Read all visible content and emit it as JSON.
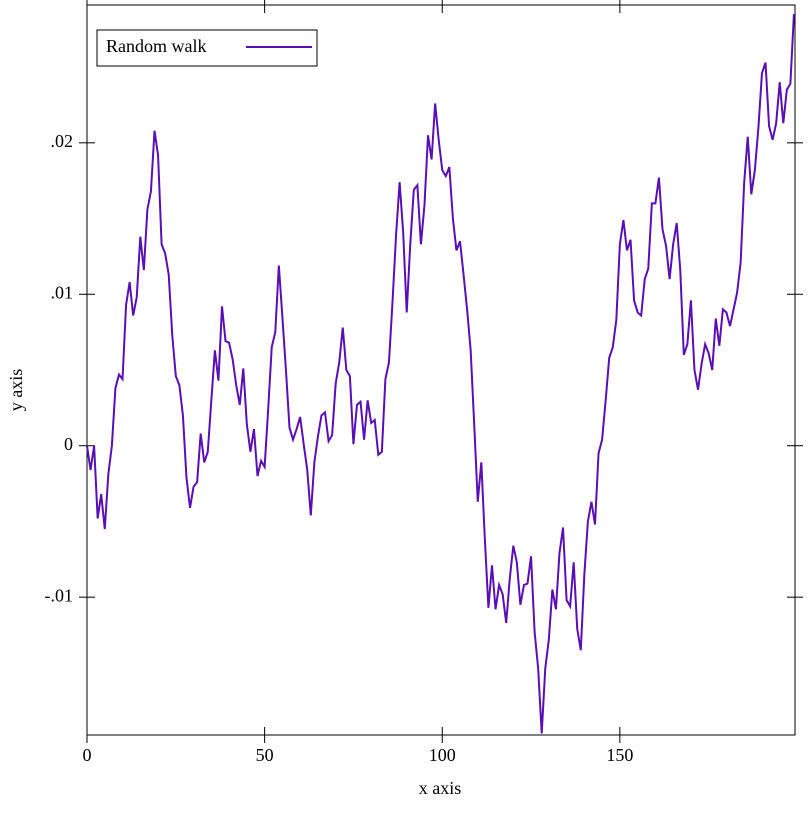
{
  "chart_data": {
    "type": "line",
    "x_label": "x axis",
    "y_label": "y axis",
    "xlim": [
      0,
      199.3
    ],
    "ylim": [
      -0.0191,
      0.0291
    ],
    "xticks": [
      0,
      50,
      100,
      150
    ],
    "yticks": [
      {
        "value": -0.01,
        "label": "-.01"
      },
      0,
      {
        "value": 0.01,
        "label": ".01"
      },
      {
        "value": 0.02,
        "label": ".02"
      }
    ],
    "legend": "top-left",
    "x": [
      0,
      1,
      2,
      3,
      4,
      5,
      6,
      7,
      8,
      9,
      10,
      11,
      12,
      13,
      14,
      15,
      16,
      17,
      18,
      19,
      20,
      21,
      22,
      23,
      24,
      25,
      26,
      27,
      28,
      29,
      30,
      31,
      32,
      33,
      34,
      35,
      36,
      37,
      38,
      39,
      40,
      41,
      42,
      43,
      44,
      45,
      46,
      47,
      48,
      49,
      50,
      51,
      52,
      53,
      54,
      55,
      56,
      57,
      58,
      59,
      60,
      61,
      62,
      63,
      64,
      65,
      66,
      67,
      68,
      69,
      70,
      71,
      72,
      73,
      74,
      75,
      76,
      77,
      78,
      79,
      80,
      81,
      82,
      83,
      84,
      85,
      86,
      87,
      88,
      89,
      90,
      91,
      92,
      93,
      94,
      95,
      96,
      97,
      98,
      99,
      100,
      101,
      102,
      103,
      104,
      105,
      106,
      107,
      108,
      109,
      110,
      111,
      112,
      113,
      114,
      115,
      116,
      117,
      118,
      119,
      120,
      121,
      122,
      123,
      124,
      125,
      126,
      127,
      128,
      129,
      130,
      131,
      132,
      133,
      134,
      135,
      136,
      137,
      138,
      139,
      140,
      141,
      142,
      143,
      144,
      145,
      146,
      147,
      148,
      149,
      150,
      151,
      152,
      153,
      154,
      155,
      156,
      157,
      158,
      159,
      160,
      161,
      162,
      163,
      164,
      165,
      166,
      167,
      168,
      169,
      170,
      171,
      172,
      173,
      174,
      175,
      176,
      177,
      178,
      179,
      180,
      181,
      182,
      183,
      184,
      185,
      186,
      187,
      188,
      189,
      190,
      191,
      192,
      193,
      194,
      195,
      196,
      197,
      198,
      199
    ],
    "series": [
      {
        "name": "Random walk",
        "color": "#5a0fb4",
        "values": [
          0,
          -0.0016,
          0,
          -0.0048,
          -0.0032,
          -0.0055,
          -0.0019,
          0,
          0.0038,
          0.0047,
          0.0044,
          0.0093,
          0.0108,
          0.0086,
          0.0098,
          0.0138,
          0.0116,
          0.0156,
          0.0168,
          0.0208,
          0.0192,
          0.0133,
          0.0127,
          0.0113,
          0.0073,
          0.0046,
          0.004,
          0.002,
          -0.0021,
          -0.0041,
          -0.0027,
          -0.0024,
          0.0008,
          -0.0011,
          -0.0004,
          0.003,
          0.0063,
          0.0043,
          0.0092,
          0.0069,
          0.0068,
          0.0057,
          0.004,
          0.0027,
          0.0051,
          0.0014,
          -0.0004,
          0.0011,
          -0.002,
          -0.001,
          -0.0014,
          0.0024,
          0.0065,
          0.0075,
          0.0119,
          0.0085,
          0.005,
          0.0012,
          0.0004,
          0.0011,
          0.0019,
          0.0001,
          -0.0016,
          -0.0046,
          -0.0011,
          0.0006,
          0.002,
          0.0022,
          0.0003,
          0.0007,
          0.0041,
          0.0055,
          0.0078,
          0.005,
          0.0046,
          0.0001,
          0.0027,
          0.0029,
          0.0004,
          0.003,
          0.0015,
          0.0017,
          -0.0006,
          -0.0004,
          0.0044,
          0.0055,
          0.0095,
          0.0139,
          0.0174,
          0.0141,
          0.0088,
          0.0133,
          0.0169,
          0.0172,
          0.0133,
          0.0159,
          0.0205,
          0.0189,
          0.0226,
          0.0202,
          0.0182,
          0.0178,
          0.0184,
          0.015,
          0.0129,
          0.0135,
          0.0113,
          0.009,
          0.0063,
          0.0014,
          -0.0037,
          -0.0011,
          -0.0062,
          -0.0107,
          -0.0079,
          -0.0108,
          -0.0092,
          -0.0098,
          -0.0117,
          -0.0088,
          -0.0066,
          -0.0077,
          -0.0105,
          -0.0092,
          -0.0091,
          -0.0073,
          -0.0123,
          -0.0147,
          -0.019,
          -0.0147,
          -0.0128,
          -0.0095,
          -0.0108,
          -0.0071,
          -0.0054,
          -0.0102,
          -0.0106,
          -0.0077,
          -0.0121,
          -0.0135,
          -0.0085,
          -0.005,
          -0.0037,
          -0.0052,
          -0.0005,
          0.0004,
          0.003,
          0.0058,
          0.0065,
          0.0083,
          0.0133,
          0.0149,
          0.0129,
          0.0136,
          0.0096,
          0.0088,
          0.0086,
          0.011,
          0.0117,
          0.016,
          0.016,
          0.0177,
          0.0143,
          0.0132,
          0.011,
          0.0133,
          0.0147,
          0.0116,
          0.006,
          0.0067,
          0.0096,
          0.005,
          0.0037,
          0.0054,
          0.0067,
          0.0061,
          0.005,
          0.0084,
          0.0066,
          0.009,
          0.0088,
          0.0079,
          0.009,
          0.0101,
          0.0121,
          0.0174,
          0.0204,
          0.0166,
          0.0182,
          0.021,
          0.0246,
          0.0253,
          0.0211,
          0.0202,
          0.0213,
          0.024,
          0.0213,
          0.0235,
          0.0239,
          0.0285
        ]
      }
    ]
  }
}
